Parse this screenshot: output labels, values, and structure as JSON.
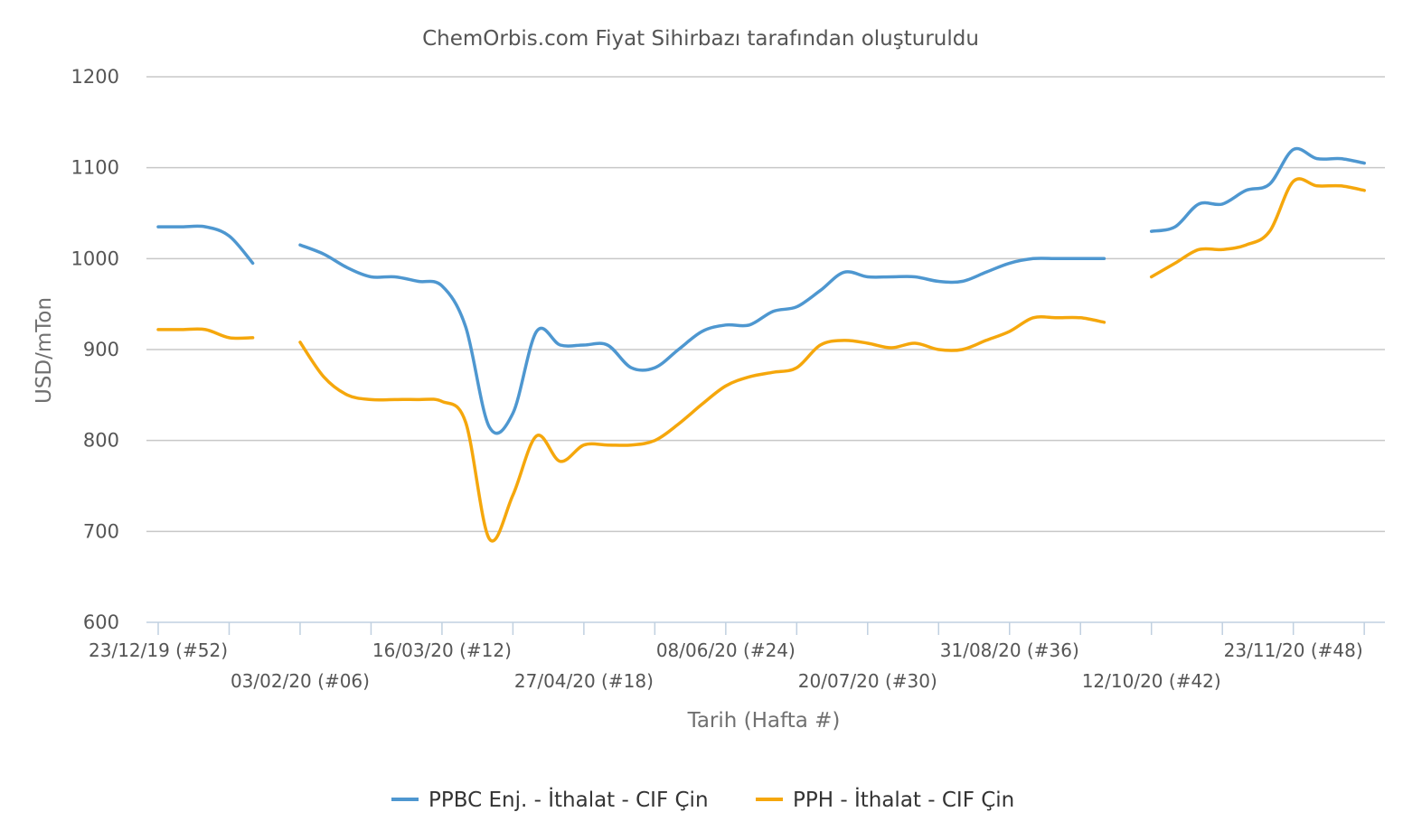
{
  "chart_data": {
    "type": "line",
    "title": "ChemOrbis.com Fiyat Sihirbazı tarafından oluşturuldu",
    "xlabel": "Tarih (Hafta #)",
    "ylabel": "USD/mTon",
    "ylim": [
      600,
      1200
    ],
    "yticks": [
      600,
      700,
      800,
      900,
      1000,
      1100,
      1200
    ],
    "grid": true,
    "legend": "bottom",
    "xtick_labels": [
      {
        "week": 0,
        "label": "23/12/19 (#52)"
      },
      {
        "week": 6,
        "label": "03/02/20 (#06)"
      },
      {
        "week": 12,
        "label": "16/03/20 (#12)"
      },
      {
        "week": 18,
        "label": "27/04/20 (#18)"
      },
      {
        "week": 24,
        "label": "08/06/20 (#24)"
      },
      {
        "week": 30,
        "label": "20/07/20 (#30)"
      },
      {
        "week": 36,
        "label": "31/08/20 (#36)"
      },
      {
        "week": 42,
        "label": "12/10/20 (#42)"
      },
      {
        "week": 48,
        "label": "23/11/20 (#48)"
      }
    ],
    "series": [
      {
        "name": "PPBC Enj. - İthalat - CIF Çin",
        "color": "#4e97d0",
        "segments": [
          [
            [
              0,
              1035
            ],
            [
              1,
              1035
            ],
            [
              2,
              1035
            ],
            [
              3,
              1025
            ],
            [
              4,
              995
            ]
          ],
          [
            [
              6,
              1015
            ],
            [
              7,
              1005
            ],
            [
              8,
              990
            ],
            [
              9,
              980
            ],
            [
              10,
              980
            ],
            [
              11,
              975
            ],
            [
              12,
              970
            ],
            [
              13,
              925
            ],
            [
              14,
              815
            ],
            [
              15,
              830
            ],
            [
              16,
              920
            ],
            [
              17,
              905
            ],
            [
              18,
              905
            ],
            [
              19,
              905
            ],
            [
              20,
              880
            ],
            [
              21,
              880
            ],
            [
              22,
              900
            ],
            [
              23,
              920
            ],
            [
              24,
              927
            ],
            [
              25,
              927
            ],
            [
              26,
              942
            ],
            [
              27,
              947
            ],
            [
              28,
              965
            ],
            [
              29,
              985
            ],
            [
              30,
              980
            ],
            [
              31,
              980
            ],
            [
              32,
              980
            ],
            [
              33,
              975
            ],
            [
              34,
              975
            ],
            [
              35,
              985
            ],
            [
              36,
              995
            ],
            [
              37,
              1000
            ],
            [
              38,
              1000
            ],
            [
              39,
              1000
            ],
            [
              40,
              1000
            ]
          ],
          [
            [
              42,
              1030
            ],
            [
              43,
              1035
            ],
            [
              44,
              1060
            ],
            [
              45,
              1060
            ],
            [
              46,
              1075
            ],
            [
              47,
              1082
            ],
            [
              48,
              1120
            ],
            [
              49,
              1110
            ],
            [
              50,
              1110
            ],
            [
              51,
              1105
            ]
          ]
        ]
      },
      {
        "name": "PPH - İthalat - CIF Çin",
        "color": "#f5a70c",
        "segments": [
          [
            [
              0,
              922
            ],
            [
              1,
              922
            ],
            [
              2,
              922
            ],
            [
              3,
              913
            ],
            [
              4,
              913
            ]
          ],
          [
            [
              6,
              908
            ],
            [
              7,
              870
            ],
            [
              8,
              850
            ],
            [
              9,
              845
            ],
            [
              10,
              845
            ],
            [
              11,
              845
            ],
            [
              12,
              843
            ],
            [
              13,
              820
            ],
            [
              14,
              692
            ],
            [
              15,
              740
            ],
            [
              16,
              805
            ],
            [
              17,
              777
            ],
            [
              18,
              795
            ],
            [
              19,
              795
            ],
            [
              20,
              795
            ],
            [
              21,
              800
            ],
            [
              22,
              818
            ],
            [
              23,
              840
            ],
            [
              24,
              860
            ],
            [
              25,
              870
            ],
            [
              26,
              875
            ],
            [
              27,
              880
            ],
            [
              28,
              905
            ],
            [
              29,
              910
            ],
            [
              30,
              907
            ],
            [
              31,
              902
            ],
            [
              32,
              907
            ],
            [
              33,
              900
            ],
            [
              34,
              900
            ],
            [
              35,
              910
            ],
            [
              36,
              920
            ],
            [
              37,
              935
            ],
            [
              38,
              935
            ],
            [
              39,
              935
            ],
            [
              40,
              930
            ]
          ],
          [
            [
              42,
              980
            ],
            [
              43,
              995
            ],
            [
              44,
              1010
            ],
            [
              45,
              1010
            ],
            [
              46,
              1015
            ],
            [
              47,
              1030
            ],
            [
              48,
              1085
            ],
            [
              49,
              1080
            ],
            [
              50,
              1080
            ],
            [
              51,
              1075
            ]
          ]
        ]
      }
    ]
  }
}
